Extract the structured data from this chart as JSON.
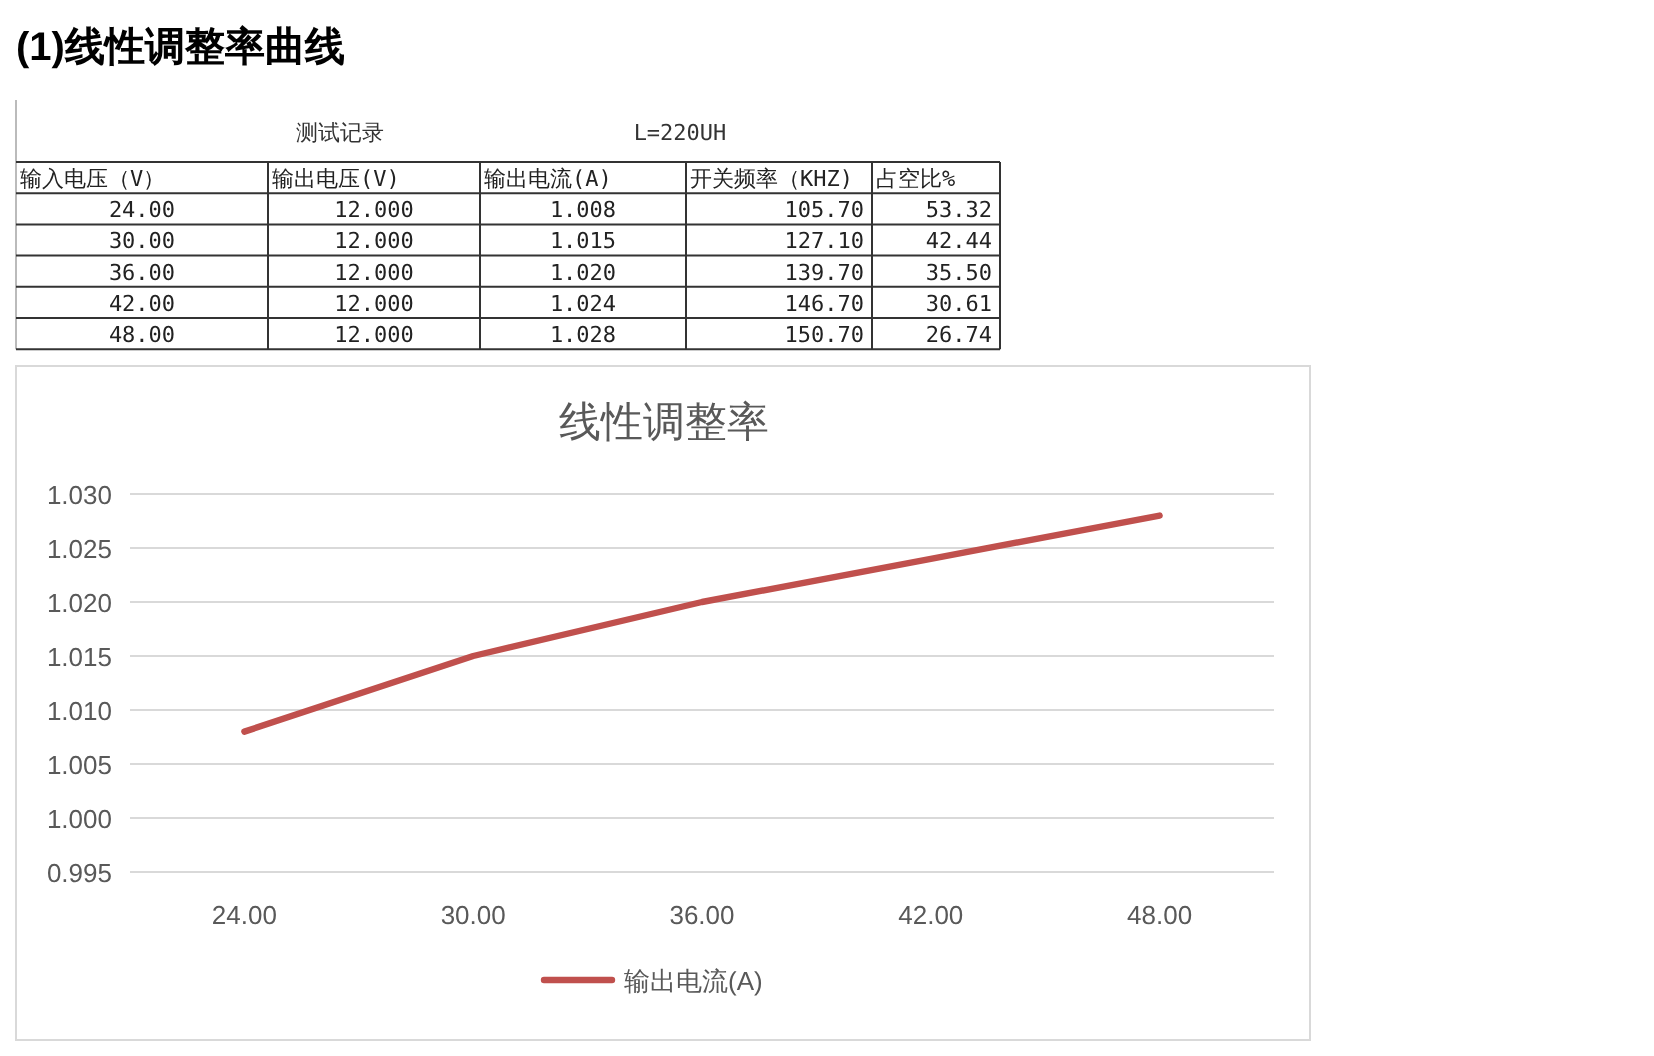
{
  "chart_data": {
    "type": "line",
    "title": "线性调整率",
    "annotations": [
      "(1)线性调整率曲线",
      "测试记录",
      "L=220UH",
      "输入电压（V）",
      "输出电压(V)",
      "输出电流(A)",
      "开关频率（KHZ)",
      "占空比%",
      "12.000",
      "1.008",
      "105.70",
      "53.32",
      "12.000",
      "1.015",
      "127.10",
      "42.44",
      "12.000",
      "1.020",
      "139.70",
      "35.50",
      "12.000",
      "1.024",
      "146.70",
      "30.61",
      "12.000",
      "1.028",
      "150.70",
      "26.74"
    ],
    "categories": [
      "24.00",
      "30.00",
      "36.00",
      "42.00",
      "48.00"
    ],
    "series": [
      {
        "name": "输出电流(A)",
        "color": "#c0504d",
        "values": [
          1.008,
          1.015,
          1.02,
          1.024,
          1.028
        ]
      }
    ],
    "ylim": [
      0.995,
      1.03
    ],
    "yticks": [
      {
        "value": 0.995,
        "label": "0.995"
      },
      {
        "value": 1.0,
        "label": "1.000"
      },
      {
        "value": 1.005,
        "label": "1.005"
      },
      {
        "value": 1.01,
        "label": "1.010"
      },
      {
        "value": 1.015,
        "label": "1.015"
      },
      {
        "value": 1.02,
        "label": "1.020"
      },
      {
        "value": 1.025,
        "label": "1.025"
      },
      {
        "value": 1.03,
        "label": "1.030"
      }
    ],
    "grid": "y",
    "legend": "bottom",
    "line_style": "solid",
    "marker": "none"
  }
}
